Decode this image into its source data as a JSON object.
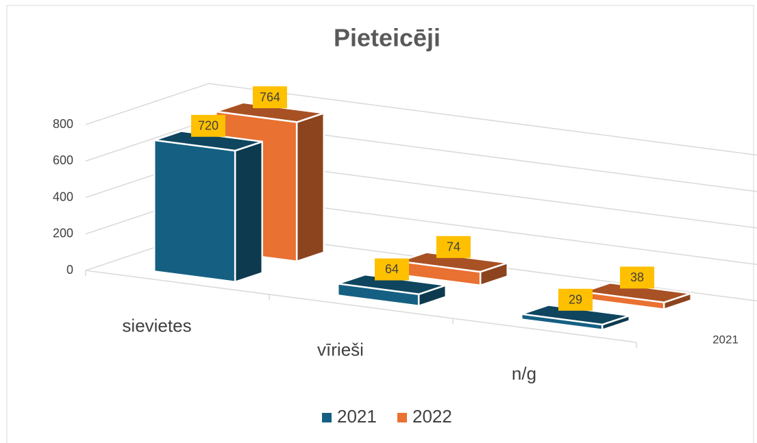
{
  "chart_data": {
    "type": "bar3d",
    "title": "Pieteicēji",
    "categories": [
      "sievietes",
      "vīrieši",
      "n/g"
    ],
    "series": [
      {
        "name": "2021",
        "color": "#156082",
        "values": [
          720,
          64,
          29
        ]
      },
      {
        "name": "2022",
        "color": "#e97132",
        "values": [
          764,
          74,
          38
        ]
      }
    ],
    "ylim": [
      0,
      800
    ],
    "yticks": [
      0,
      200,
      400,
      600,
      800
    ],
    "grid": true,
    "legend": "bottom",
    "label_color": "#ffc000"
  }
}
